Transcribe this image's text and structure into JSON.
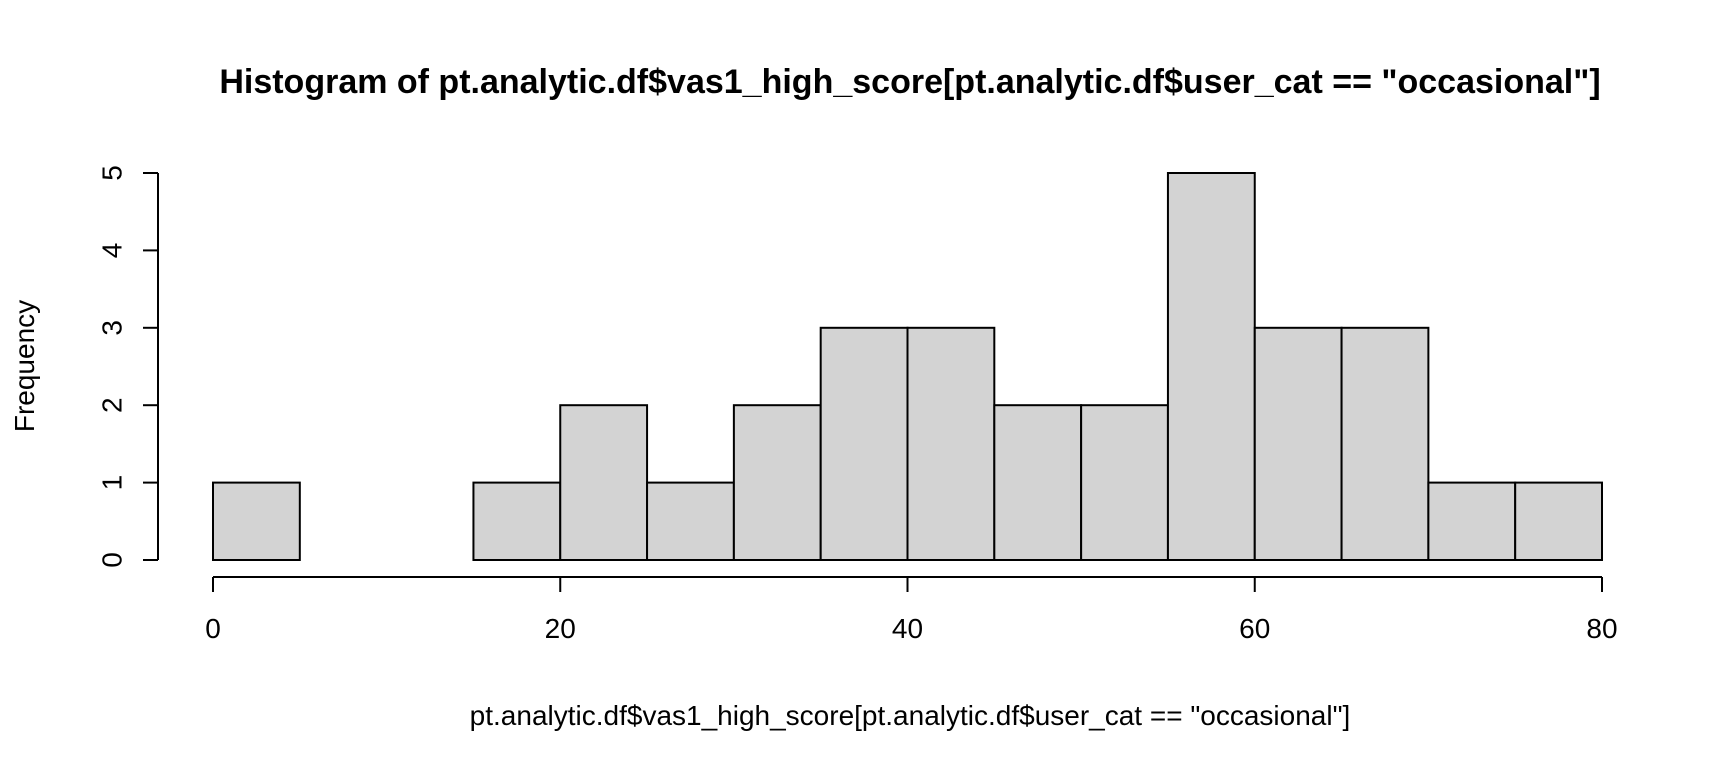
{
  "chart_data": {
    "type": "bar",
    "subtype": "histogram",
    "title": "Histogram of pt.analytic.df$vas1_high_score[pt.analytic.df$user_cat == \"occasional\"]",
    "xlabel": "pt.analytic.df$vas1_high_score[pt.analytic.df$user_cat == \"occasional\"]",
    "ylabel": "Frequency",
    "bins": [
      {
        "start": 0,
        "end": 5,
        "count": 1
      },
      {
        "start": 5,
        "end": 10,
        "count": 0
      },
      {
        "start": 10,
        "end": 15,
        "count": 0
      },
      {
        "start": 15,
        "end": 20,
        "count": 1
      },
      {
        "start": 20,
        "end": 25,
        "count": 2
      },
      {
        "start": 25,
        "end": 30,
        "count": 1
      },
      {
        "start": 30,
        "end": 35,
        "count": 2
      },
      {
        "start": 35,
        "end": 40,
        "count": 3
      },
      {
        "start": 40,
        "end": 45,
        "count": 3
      },
      {
        "start": 45,
        "end": 50,
        "count": 2
      },
      {
        "start": 50,
        "end": 55,
        "count": 2
      },
      {
        "start": 55,
        "end": 60,
        "count": 5
      },
      {
        "start": 60,
        "end": 65,
        "count": 3
      },
      {
        "start": 65,
        "end": 70,
        "count": 3
      },
      {
        "start": 70,
        "end": 75,
        "count": 1
      },
      {
        "start": 75,
        "end": 80,
        "count": 1
      }
    ],
    "xlim": [
      0,
      80
    ],
    "ylim": [
      0,
      5
    ],
    "xticks": [
      0,
      20,
      40,
      60,
      80
    ],
    "yticks": [
      0,
      1,
      2,
      3,
      4,
      5
    ],
    "grid": false,
    "bar_color": "#d3d3d3",
    "border_color": "#000000"
  }
}
